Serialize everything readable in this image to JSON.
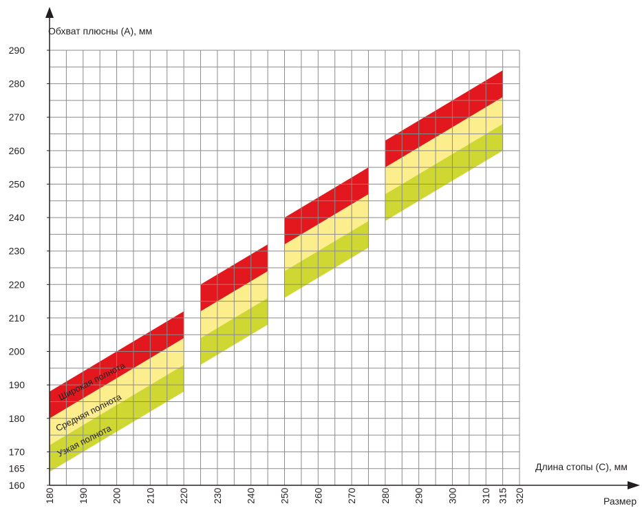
{
  "chart_data": {
    "type": "area",
    "title": "",
    "ylabel": "Обхват плюсны (А), мм",
    "xlabel": "Длина стопы (С), мм",
    "xlabel_secondary": "Размер",
    "xlim": [
      180,
      320
    ],
    "ylim": [
      160,
      290
    ],
    "x_ticks": [
      "180",
      "190",
      "200",
      "210",
      "220",
      "230",
      "240",
      "250",
      "260",
      "270",
      "280",
      "290",
      "300",
      "310",
      "315",
      "320"
    ],
    "y_ticks": [
      "160",
      "165",
      "170",
      "180",
      "190",
      "200",
      "210",
      "220",
      "230",
      "240",
      "250",
      "260",
      "270",
      "280",
      "290"
    ],
    "highlight_ticks": {
      "x": "315",
      "y": "165"
    },
    "grid": true,
    "band_labels": {
      "wide": "Широкая полнота",
      "medium": "Средняя полнота",
      "narrow": "Узкая полнота"
    },
    "colors": {
      "wide": "#e3181f",
      "medium": "#fcee8d",
      "narrow": "#cfd833",
      "grid": "#8a8a8a",
      "axis": "#231f20",
      "highlight": "#e3181f"
    },
    "segments": [
      {
        "x": [
          180,
          220
        ],
        "wide": [
          [
            188,
            212
          ],
          [
            180,
            204
          ]
        ],
        "medium": [
          [
            180,
            204
          ],
          [
            172,
            196
          ]
        ],
        "narrow": [
          [
            172,
            196
          ],
          [
            164,
            188
          ]
        ]
      },
      {
        "x": [
          225,
          245
        ],
        "wide": [
          [
            220,
            232
          ],
          [
            212,
            224
          ]
        ],
        "medium": [
          [
            212,
            224
          ],
          [
            204,
            216
          ]
        ],
        "narrow": [
          [
            204,
            216
          ],
          [
            196,
            208
          ]
        ]
      },
      {
        "x": [
          250,
          275
        ],
        "wide": [
          [
            240,
            255
          ],
          [
            232,
            247
          ]
        ],
        "medium": [
          [
            232,
            247
          ],
          [
            224,
            239
          ]
        ],
        "narrow": [
          [
            224,
            239
          ],
          [
            216,
            231
          ]
        ]
      },
      {
        "x": [
          280,
          315
        ],
        "wide": [
          [
            263,
            284
          ],
          [
            255,
            276
          ]
        ],
        "medium": [
          [
            255,
            276
          ],
          [
            247,
            268
          ]
        ],
        "narrow": [
          [
            247,
            268
          ],
          [
            239,
            260
          ]
        ]
      }
    ]
  }
}
